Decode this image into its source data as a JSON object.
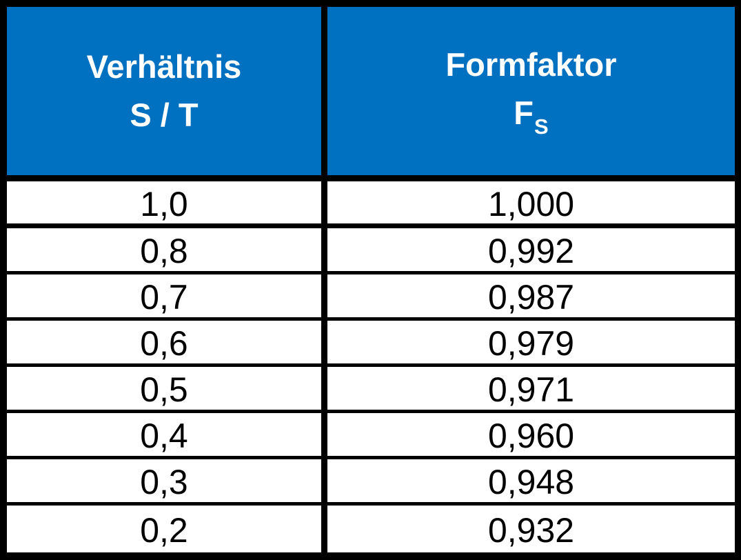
{
  "table": {
    "columns": [
      {
        "line1": "Verhältnis",
        "line2": "S / T",
        "line2_sub": ""
      },
      {
        "line1": "Formfaktor",
        "line2": "F",
        "line2_sub": "S"
      }
    ],
    "rows": [
      [
        "1,0",
        "1,000"
      ],
      [
        "0,8",
        "0,992"
      ],
      [
        "0,7",
        "0,987"
      ],
      [
        "0,6",
        "0,979"
      ],
      [
        "0,5",
        "0,971"
      ],
      [
        "0,4",
        "0,960"
      ],
      [
        "0,3",
        "0,948"
      ],
      [
        "0,2",
        "0,932"
      ]
    ]
  },
  "colors": {
    "header_background": "#0070C0",
    "header_text": "#FFFFFF",
    "border": "#000000",
    "body_background": "#FFFFFF",
    "body_text": "#000000"
  }
}
